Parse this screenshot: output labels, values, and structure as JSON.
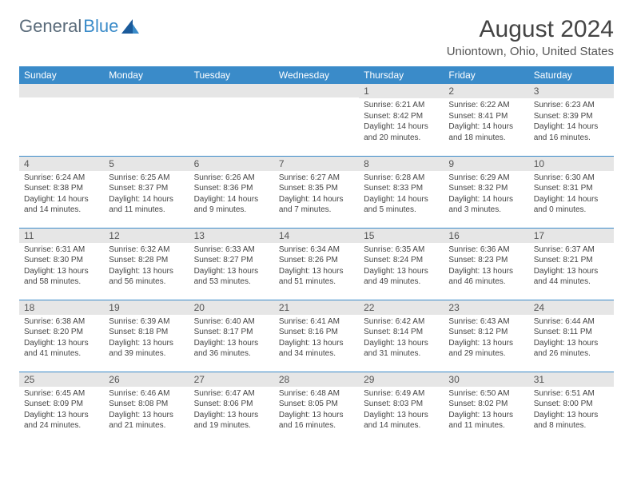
{
  "logo": {
    "text1": "General",
    "text2": "Blue"
  },
  "title": "August 2024",
  "location": "Uniontown, Ohio, United States",
  "colors": {
    "header_bg": "#3a8bc9",
    "daynum_bg": "#e6e6e6",
    "rule": "#3a8bc9"
  },
  "weekdays": [
    "Sunday",
    "Monday",
    "Tuesday",
    "Wednesday",
    "Thursday",
    "Friday",
    "Saturday"
  ],
  "weeks": [
    [
      null,
      null,
      null,
      null,
      {
        "n": "1",
        "sr": "Sunrise: 6:21 AM",
        "ss": "Sunset: 8:42 PM",
        "dl": "Daylight: 14 hours and 20 minutes."
      },
      {
        "n": "2",
        "sr": "Sunrise: 6:22 AM",
        "ss": "Sunset: 8:41 PM",
        "dl": "Daylight: 14 hours and 18 minutes."
      },
      {
        "n": "3",
        "sr": "Sunrise: 6:23 AM",
        "ss": "Sunset: 8:39 PM",
        "dl": "Daylight: 14 hours and 16 minutes."
      }
    ],
    [
      {
        "n": "4",
        "sr": "Sunrise: 6:24 AM",
        "ss": "Sunset: 8:38 PM",
        "dl": "Daylight: 14 hours and 14 minutes."
      },
      {
        "n": "5",
        "sr": "Sunrise: 6:25 AM",
        "ss": "Sunset: 8:37 PM",
        "dl": "Daylight: 14 hours and 11 minutes."
      },
      {
        "n": "6",
        "sr": "Sunrise: 6:26 AM",
        "ss": "Sunset: 8:36 PM",
        "dl": "Daylight: 14 hours and 9 minutes."
      },
      {
        "n": "7",
        "sr": "Sunrise: 6:27 AM",
        "ss": "Sunset: 8:35 PM",
        "dl": "Daylight: 14 hours and 7 minutes."
      },
      {
        "n": "8",
        "sr": "Sunrise: 6:28 AM",
        "ss": "Sunset: 8:33 PM",
        "dl": "Daylight: 14 hours and 5 minutes."
      },
      {
        "n": "9",
        "sr": "Sunrise: 6:29 AM",
        "ss": "Sunset: 8:32 PM",
        "dl": "Daylight: 14 hours and 3 minutes."
      },
      {
        "n": "10",
        "sr": "Sunrise: 6:30 AM",
        "ss": "Sunset: 8:31 PM",
        "dl": "Daylight: 14 hours and 0 minutes."
      }
    ],
    [
      {
        "n": "11",
        "sr": "Sunrise: 6:31 AM",
        "ss": "Sunset: 8:30 PM",
        "dl": "Daylight: 13 hours and 58 minutes."
      },
      {
        "n": "12",
        "sr": "Sunrise: 6:32 AM",
        "ss": "Sunset: 8:28 PM",
        "dl": "Daylight: 13 hours and 56 minutes."
      },
      {
        "n": "13",
        "sr": "Sunrise: 6:33 AM",
        "ss": "Sunset: 8:27 PM",
        "dl": "Daylight: 13 hours and 53 minutes."
      },
      {
        "n": "14",
        "sr": "Sunrise: 6:34 AM",
        "ss": "Sunset: 8:26 PM",
        "dl": "Daylight: 13 hours and 51 minutes."
      },
      {
        "n": "15",
        "sr": "Sunrise: 6:35 AM",
        "ss": "Sunset: 8:24 PM",
        "dl": "Daylight: 13 hours and 49 minutes."
      },
      {
        "n": "16",
        "sr": "Sunrise: 6:36 AM",
        "ss": "Sunset: 8:23 PM",
        "dl": "Daylight: 13 hours and 46 minutes."
      },
      {
        "n": "17",
        "sr": "Sunrise: 6:37 AM",
        "ss": "Sunset: 8:21 PM",
        "dl": "Daylight: 13 hours and 44 minutes."
      }
    ],
    [
      {
        "n": "18",
        "sr": "Sunrise: 6:38 AM",
        "ss": "Sunset: 8:20 PM",
        "dl": "Daylight: 13 hours and 41 minutes."
      },
      {
        "n": "19",
        "sr": "Sunrise: 6:39 AM",
        "ss": "Sunset: 8:18 PM",
        "dl": "Daylight: 13 hours and 39 minutes."
      },
      {
        "n": "20",
        "sr": "Sunrise: 6:40 AM",
        "ss": "Sunset: 8:17 PM",
        "dl": "Daylight: 13 hours and 36 minutes."
      },
      {
        "n": "21",
        "sr": "Sunrise: 6:41 AM",
        "ss": "Sunset: 8:16 PM",
        "dl": "Daylight: 13 hours and 34 minutes."
      },
      {
        "n": "22",
        "sr": "Sunrise: 6:42 AM",
        "ss": "Sunset: 8:14 PM",
        "dl": "Daylight: 13 hours and 31 minutes."
      },
      {
        "n": "23",
        "sr": "Sunrise: 6:43 AM",
        "ss": "Sunset: 8:12 PM",
        "dl": "Daylight: 13 hours and 29 minutes."
      },
      {
        "n": "24",
        "sr": "Sunrise: 6:44 AM",
        "ss": "Sunset: 8:11 PM",
        "dl": "Daylight: 13 hours and 26 minutes."
      }
    ],
    [
      {
        "n": "25",
        "sr": "Sunrise: 6:45 AM",
        "ss": "Sunset: 8:09 PM",
        "dl": "Daylight: 13 hours and 24 minutes."
      },
      {
        "n": "26",
        "sr": "Sunrise: 6:46 AM",
        "ss": "Sunset: 8:08 PM",
        "dl": "Daylight: 13 hours and 21 minutes."
      },
      {
        "n": "27",
        "sr": "Sunrise: 6:47 AM",
        "ss": "Sunset: 8:06 PM",
        "dl": "Daylight: 13 hours and 19 minutes."
      },
      {
        "n": "28",
        "sr": "Sunrise: 6:48 AM",
        "ss": "Sunset: 8:05 PM",
        "dl": "Daylight: 13 hours and 16 minutes."
      },
      {
        "n": "29",
        "sr": "Sunrise: 6:49 AM",
        "ss": "Sunset: 8:03 PM",
        "dl": "Daylight: 13 hours and 14 minutes."
      },
      {
        "n": "30",
        "sr": "Sunrise: 6:50 AM",
        "ss": "Sunset: 8:02 PM",
        "dl": "Daylight: 13 hours and 11 minutes."
      },
      {
        "n": "31",
        "sr": "Sunrise: 6:51 AM",
        "ss": "Sunset: 8:00 PM",
        "dl": "Daylight: 13 hours and 8 minutes."
      }
    ]
  ]
}
